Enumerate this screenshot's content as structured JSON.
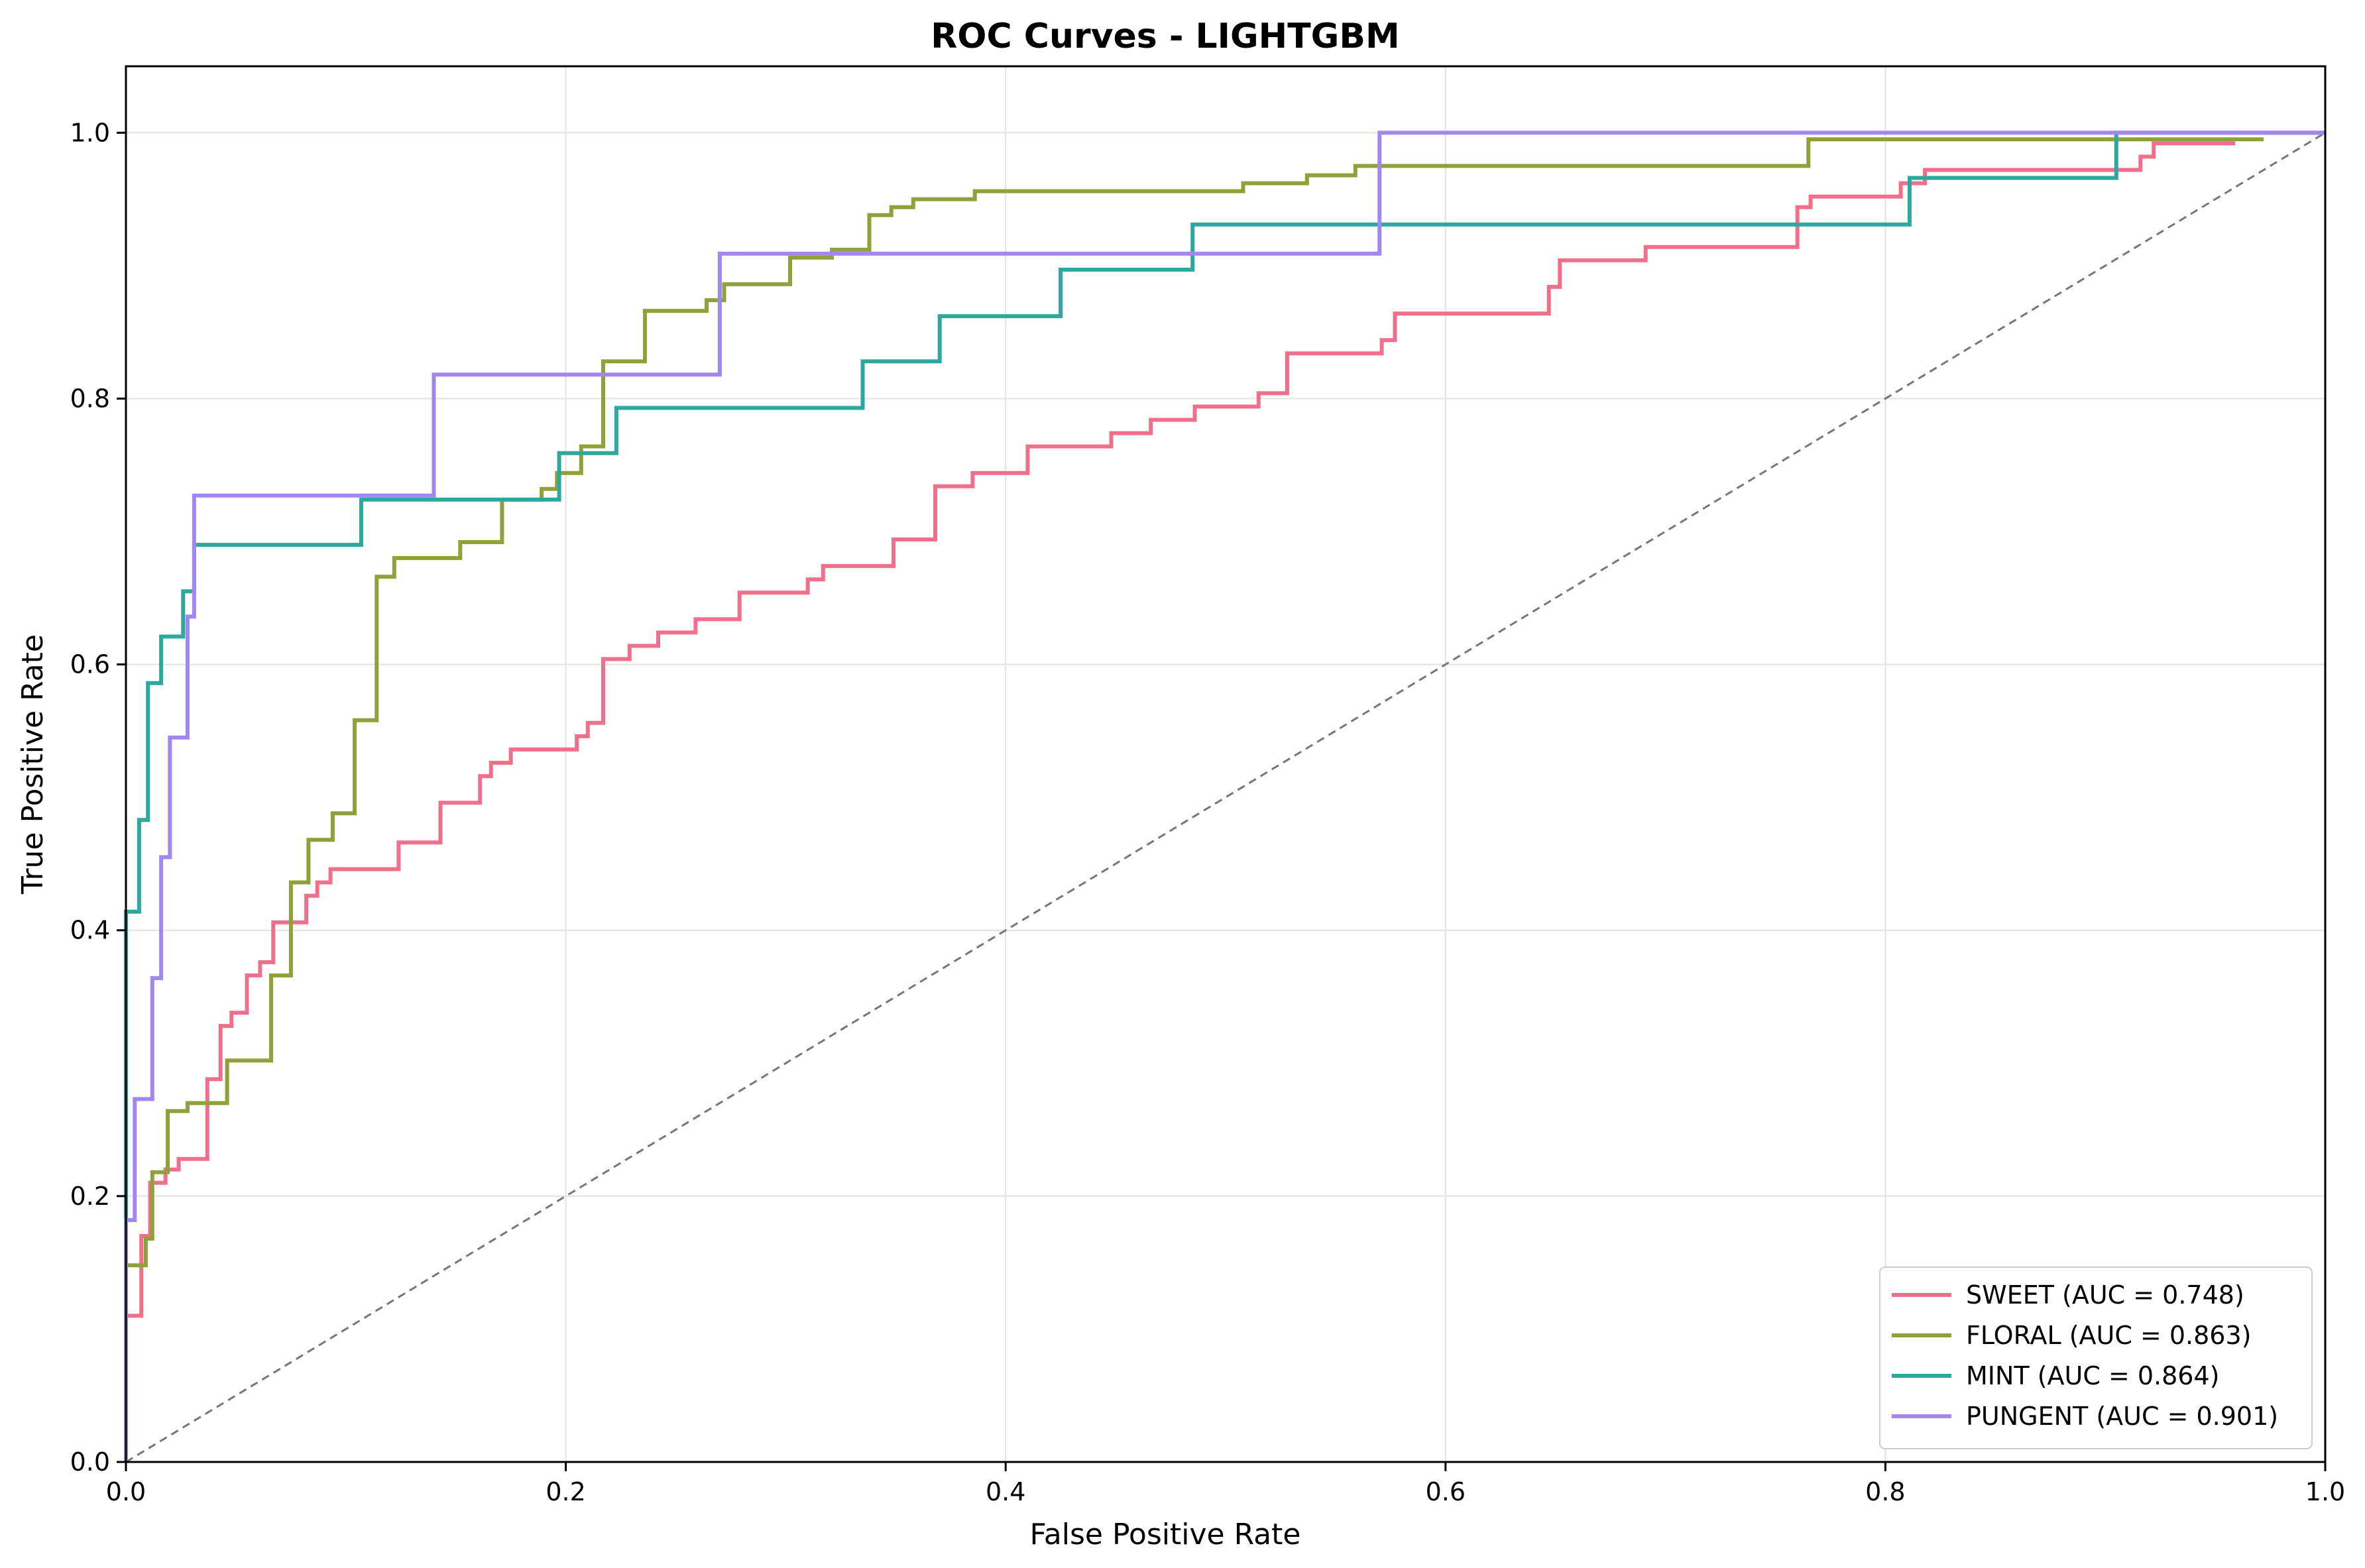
{
  "chart_data": {
    "type": "line",
    "title": "ROC Curves - LIGHTGBM",
    "xlabel": "False Positive Rate",
    "ylabel": "True Positive Rate",
    "xlim": [
      0,
      1
    ],
    "ylim": [
      0,
      1.05
    ],
    "xticks": [
      "0.0",
      "0.2",
      "0.4",
      "0.6",
      "0.8",
      "1.0"
    ],
    "yticks": [
      "0.0",
      "0.2",
      "0.4",
      "0.6",
      "0.8",
      "1.0"
    ],
    "grid": true,
    "legend_position": "lower-right",
    "reference_line": {
      "x": [
        0,
        1
      ],
      "y": [
        0,
        1
      ],
      "color": "#777777",
      "style": "dashed"
    },
    "series": [
      {
        "name": "SWEET (AUC = 0.748)",
        "color": "#f0708c",
        "x": [
          0,
          0,
          0.007,
          0.007,
          0.011,
          0.011,
          0.018,
          0.018,
          0.024,
          0.024,
          0.037,
          0.037,
          0.043,
          0.043,
          0.048,
          0.048,
          0.055,
          0.055,
          0.061,
          0.061,
          0.067,
          0.067,
          0.082,
          0.082,
          0.087,
          0.087,
          0.093,
          0.093,
          0.124,
          0.124,
          0.143,
          0.143,
          0.161,
          0.161,
          0.166,
          0.166,
          0.175,
          0.175,
          0.205,
          0.205,
          0.21,
          0.21,
          0.217,
          0.217,
          0.229,
          0.229,
          0.242,
          0.242,
          0.259,
          0.259,
          0.279,
          0.279,
          0.31,
          0.31,
          0.317,
          0.317,
          0.349,
          0.349,
          0.368,
          0.368,
          0.385,
          0.385,
          0.41,
          0.41,
          0.448,
          0.448,
          0.466,
          0.466,
          0.486,
          0.486,
          0.515,
          0.515,
          0.528,
          0.528,
          0.571,
          0.571,
          0.577,
          0.577,
          0.647,
          0.647,
          0.652,
          0.652,
          0.691,
          0.691,
          0.76,
          0.76,
          0.766,
          0.766,
          0.807,
          0.807,
          0.818,
          0.818,
          0.916,
          0.916,
          0.922,
          0.922,
          0.959
        ],
        "y": [
          0,
          0.11,
          0.11,
          0.17,
          0.17,
          0.21,
          0.21,
          0.22,
          0.22,
          0.228,
          0.228,
          0.288,
          0.288,
          0.328,
          0.328,
          0.338,
          0.338,
          0.366,
          0.366,
          0.376,
          0.376,
          0.406,
          0.406,
          0.426,
          0.426,
          0.436,
          0.436,
          0.446,
          0.446,
          0.466,
          0.466,
          0.496,
          0.496,
          0.516,
          0.516,
          0.526,
          0.526,
          0.536,
          0.536,
          0.546,
          0.546,
          0.556,
          0.556,
          0.604,
          0.604,
          0.614,
          0.614,
          0.624,
          0.624,
          0.634,
          0.634,
          0.654,
          0.654,
          0.664,
          0.664,
          0.674,
          0.674,
          0.694,
          0.694,
          0.734,
          0.734,
          0.744,
          0.744,
          0.764,
          0.764,
          0.774,
          0.774,
          0.784,
          0.784,
          0.794,
          0.794,
          0.804,
          0.804,
          0.834,
          0.834,
          0.844,
          0.844,
          0.864,
          0.864,
          0.884,
          0.884,
          0.904,
          0.904,
          0.914,
          0.914,
          0.944,
          0.944,
          0.952,
          0.952,
          0.962,
          0.962,
          0.972,
          0.972,
          0.982,
          0.982,
          0.992,
          0.992
        ]
      },
      {
        "name": "FLORAL (AUC = 0.863)",
        "color": "#8fa23a",
        "x": [
          0,
          0,
          0.009,
          0.009,
          0.012,
          0.012,
          0.019,
          0.019,
          0.028,
          0.028,
          0.046,
          0.046,
          0.066,
          0.066,
          0.075,
          0.075,
          0.083,
          0.083,
          0.094,
          0.094,
          0.104,
          0.104,
          0.114,
          0.114,
          0.122,
          0.122,
          0.152,
          0.152,
          0.171,
          0.171,
          0.189,
          0.189,
          0.196,
          0.196,
          0.207,
          0.207,
          0.217,
          0.217,
          0.236,
          0.236,
          0.264,
          0.264,
          0.272,
          0.272,
          0.302,
          0.302,
          0.321,
          0.321,
          0.338,
          0.338,
          0.348,
          0.348,
          0.358,
          0.358,
          0.386,
          0.386,
          0.508,
          0.508,
          0.537,
          0.537,
          0.559,
          0.559,
          0.572,
          0.572,
          0.765,
          0.765,
          0.972
        ],
        "y": [
          0,
          0.148,
          0.148,
          0.168,
          0.168,
          0.218,
          0.218,
          0.264,
          0.264,
          0.27,
          0.27,
          0.302,
          0.302,
          0.366,
          0.366,
          0.436,
          0.436,
          0.468,
          0.468,
          0.488,
          0.488,
          0.558,
          0.558,
          0.666,
          0.666,
          0.68,
          0.68,
          0.692,
          0.692,
          0.724,
          0.724,
          0.732,
          0.732,
          0.744,
          0.744,
          0.764,
          0.764,
          0.828,
          0.828,
          0.866,
          0.866,
          0.874,
          0.874,
          0.886,
          0.886,
          0.906,
          0.906,
          0.912,
          0.912,
          0.938,
          0.938,
          0.944,
          0.944,
          0.95,
          0.95,
          0.956,
          0.956,
          0.962,
          0.962,
          0.968,
          0.968,
          0.975,
          0.975,
          0.975,
          0.975,
          0.995,
          0.995
        ]
      },
      {
        "name": "MINT (AUC = 0.864)",
        "color": "#2ea89e",
        "x": [
          0,
          0,
          0.006,
          0.006,
          0.01,
          0.01,
          0.016,
          0.016,
          0.026,
          0.026,
          0.031,
          0.031,
          0.107,
          0.107,
          0.197,
          0.197,
          0.223,
          0.223,
          0.335,
          0.335,
          0.37,
          0.37,
          0.425,
          0.425,
          0.485,
          0.485,
          0.811,
          0.811,
          0.905,
          0.905,
          1.0
        ],
        "y": [
          0,
          0.414,
          0.414,
          0.483,
          0.483,
          0.586,
          0.586,
          0.621,
          0.621,
          0.655,
          0.655,
          0.69,
          0.69,
          0.724,
          0.724,
          0.759,
          0.759,
          0.793,
          0.793,
          0.828,
          0.828,
          0.862,
          0.862,
          0.897,
          0.897,
          0.931,
          0.931,
          0.966,
          0.966,
          1.0,
          1.0
        ]
      },
      {
        "name": "PUNGENT (AUC = 0.901)",
        "color": "#a287f0",
        "x": [
          0,
          0,
          0.004,
          0.004,
          0.012,
          0.012,
          0.016,
          0.016,
          0.02,
          0.02,
          0.028,
          0.028,
          0.031,
          0.031,
          0.14,
          0.14,
          0.27,
          0.27,
          0.57,
          0.57,
          1.0
        ],
        "y": [
          0,
          0.182,
          0.182,
          0.273,
          0.273,
          0.364,
          0.364,
          0.455,
          0.455,
          0.545,
          0.545,
          0.636,
          0.636,
          0.727,
          0.727,
          0.818,
          0.818,
          0.909,
          0.909,
          1.0,
          1.0
        ]
      }
    ]
  }
}
